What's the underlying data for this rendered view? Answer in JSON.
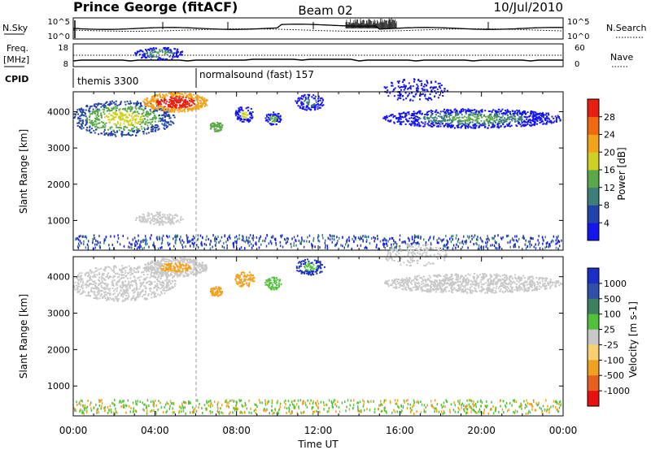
{
  "chart_data": {
    "type": "heatmap",
    "header": {
      "station": "Prince George (fitACF)",
      "beam": "Beam 02",
      "date": "10/Jul/2010"
    },
    "time_axis": {
      "xlabel": "Time UT",
      "ticks": [
        "00:00",
        "04:00",
        "08:00",
        "12:00",
        "16:00",
        "20:00",
        "00:00"
      ],
      "range_hours": [
        0,
        24
      ]
    },
    "top_panels": {
      "nsky": {
        "label": "N.Sky",
        "tick_top": "10^5",
        "tick_bottom": "10^0",
        "right_label": "N.Search",
        "right_tick_top": "10^5",
        "right_tick_bottom": "10^0"
      },
      "freq": {
        "label_line1": "Freq.",
        "label_line2": "[MHz]",
        "tick_top": "18",
        "tick_bottom": "8",
        "right_label": "Nave",
        "right_tick_top": "60",
        "right_tick_bottom": "0"
      },
      "cpid": {
        "label": "CPID",
        "segments": [
          {
            "start_hour": 0.0,
            "label": "themis 3300"
          },
          {
            "start_hour": 6.0,
            "label": "normalsound (fast) 157"
          }
        ]
      }
    },
    "power_panel": {
      "ylabel": "Slant Range [km]",
      "yticks": [
        1000,
        2000,
        3000,
        4000
      ],
      "ylim": [
        180,
        4550
      ],
      "colorbar": {
        "label": "Power [dB]",
        "ticks": [
          "4",
          "8",
          "12",
          "16",
          "20",
          "24",
          "28"
        ],
        "colors": [
          "#1515ee",
          "#2244aa",
          "#3d7f78",
          "#5aa84a",
          "#cfd021",
          "#f3a318",
          "#f06a10",
          "#e81e10"
        ]
      }
    },
    "velocity_panel": {
      "ylabel": "Slant Range [km]",
      "yticks": [
        1000,
        2000,
        3000,
        4000
      ],
      "ylim": [
        180,
        4550
      ],
      "colorbar": {
        "label": "Velocity [m s-1]",
        "ticks": [
          "1000",
          "500",
          "100",
          "25",
          "-25",
          "-100",
          "-500",
          "-1000"
        ],
        "colors": [
          "#1b2fc8",
          "#2f4fa8",
          "#3c8060",
          "#52c03a",
          "#c8c8c8",
          "#f7d070",
          "#f1a020",
          "#e86020",
          "#e81010"
        ]
      }
    }
  }
}
